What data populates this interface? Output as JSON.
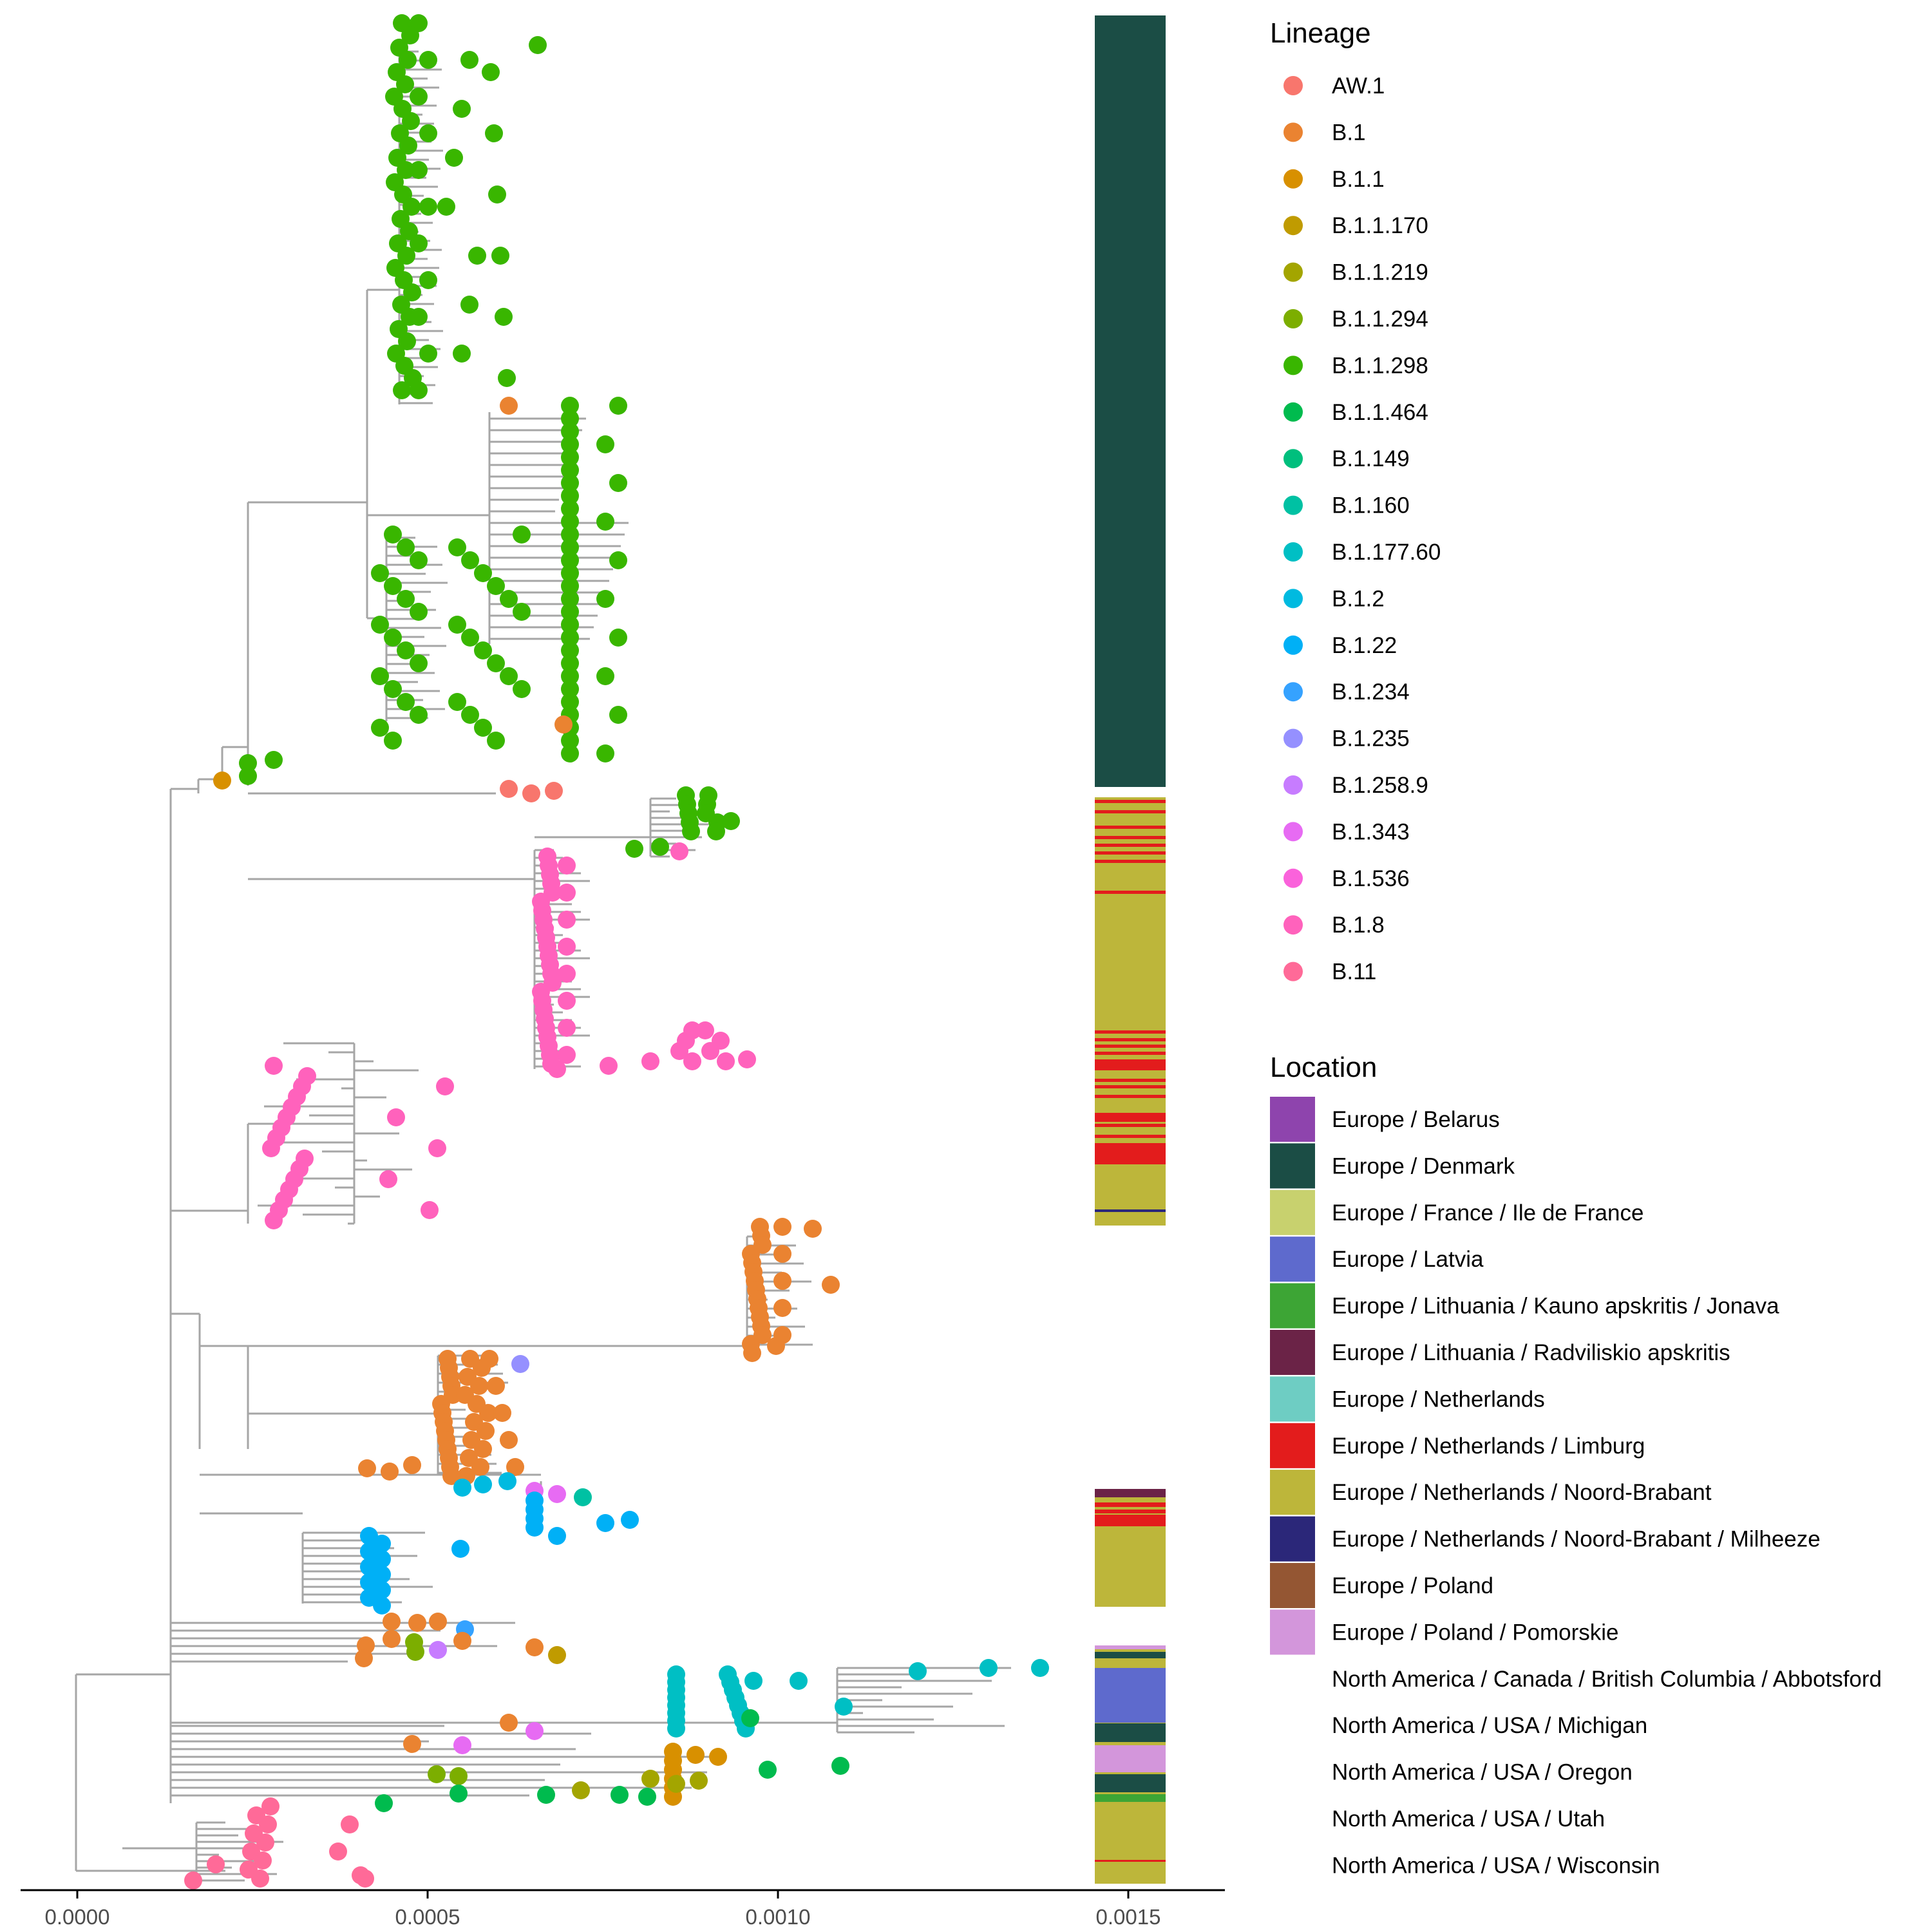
{
  "axis": {
    "ticks": [
      {
        "value": 0.0,
        "label": "0.0000"
      },
      {
        "value": 0.0005,
        "label": "0.0005"
      },
      {
        "value": 0.001,
        "label": "0.0010"
      },
      {
        "value": 0.0015,
        "label": "0.0015"
      }
    ],
    "range": [
      -8e-05,
      0.00163
    ]
  },
  "legend_lineage": {
    "title": "Lineage",
    "items": [
      {
        "label": "AW.1",
        "color": "#F8766D"
      },
      {
        "label": "B.1",
        "color": "#EA8331"
      },
      {
        "label": "B.1.1",
        "color": "#D89000"
      },
      {
        "label": "B.1.1.170",
        "color": "#C09B00"
      },
      {
        "label": "B.1.1.219",
        "color": "#A3A500"
      },
      {
        "label": "B.1.1.294",
        "color": "#7CAE00"
      },
      {
        "label": "B.1.1.298",
        "color": "#39B600"
      },
      {
        "label": "B.1.1.464",
        "color": "#00BB4E"
      },
      {
        "label": "B.1.149",
        "color": "#00BF7D"
      },
      {
        "label": "B.1.160",
        "color": "#00C1A3"
      },
      {
        "label": "B.1.177.60",
        "color": "#00BFC4"
      },
      {
        "label": "B.1.2",
        "color": "#00BAE0"
      },
      {
        "label": "B.1.22",
        "color": "#00B0F6"
      },
      {
        "label": "B.1.234",
        "color": "#35A2FF"
      },
      {
        "label": "B.1.235",
        "color": "#9590FF"
      },
      {
        "label": "B.1.258.9",
        "color": "#C77CFF"
      },
      {
        "label": "B.1.343",
        "color": "#E76BF3"
      },
      {
        "label": "B.1.536",
        "color": "#FA62DB"
      },
      {
        "label": "B.1.8",
        "color": "#FF62BC"
      },
      {
        "label": "B.11",
        "color": "#FF6A98"
      }
    ]
  },
  "legend_location": {
    "title": "Location",
    "items": [
      {
        "label": "Europe / Belarus",
        "color": "#8E44AD"
      },
      {
        "label": "Europe / Denmark",
        "color": "#1B4D45"
      },
      {
        "label": "Europe / France / Ile de France",
        "color": "#C8D16E"
      },
      {
        "label": "Europe / Latvia",
        "color": "#5E6ACD"
      },
      {
        "label": "Europe / Lithuania / Kauno apskritis / Jonava",
        "color": "#3DA535"
      },
      {
        "label": "Europe / Lithuania / Radviliskio apskritis",
        "color": "#6B2347"
      },
      {
        "label": "Europe / Netherlands",
        "color": "#6ECDC3"
      },
      {
        "label": "Europe / Netherlands / Limburg",
        "color": "#E31C1C"
      },
      {
        "label": "Europe / Netherlands / Noord-Brabant",
        "color": "#BDB63A"
      },
      {
        "label": "Europe / Netherlands / Noord-Brabant / Milheeze",
        "color": "#2B2779"
      },
      {
        "label": "Europe / Poland",
        "color": "#945633"
      },
      {
        "label": "Europe / Poland / Pomorskie",
        "color": "#D396DB"
      },
      {
        "label": "North America / Canada / British Columbia / Abbotsford",
        "color": ""
      },
      {
        "label": "North America / USA / Michigan",
        "color": ""
      },
      {
        "label": "North America / USA / Oregon",
        "color": ""
      },
      {
        "label": "North America / USA / Utah",
        "color": ""
      },
      {
        "label": "North America / USA / Wisconsin",
        "color": ""
      }
    ]
  },
  "colors": {
    "branch": "#A6A6A6",
    "axis_line": "#000000",
    "tick_text": "#4d4d4d"
  }
}
